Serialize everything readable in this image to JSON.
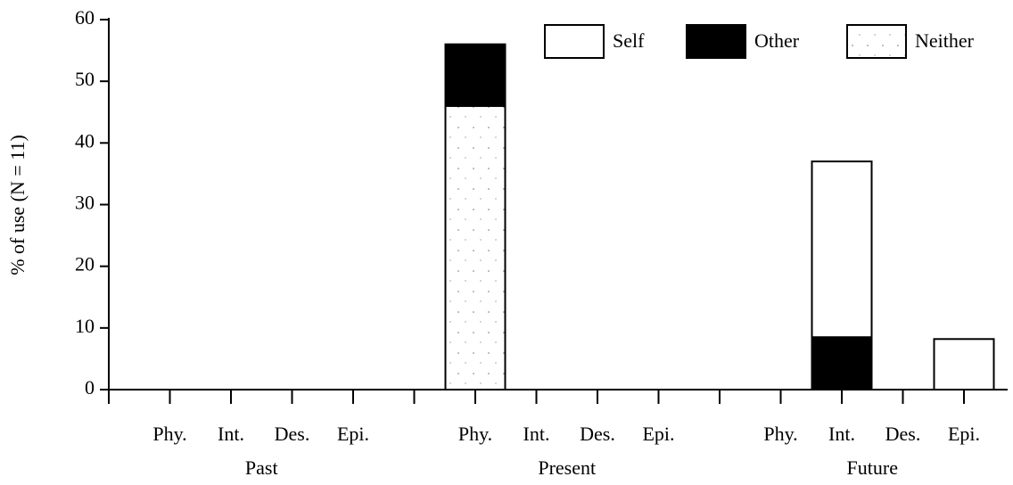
{
  "chart_data": {
    "type": "stacked-bar",
    "ylabel": "% of use (N = 11)",
    "categories": [
      "Phy.",
      "Int.",
      "Des.",
      "Epi.",
      "Phy.",
      "Int.",
      "Des.",
      "Epi.",
      "Phy.",
      "Int.",
      "Des.",
      "Epi."
    ],
    "groups": [
      "Past",
      "Present",
      "Future"
    ],
    "series": [
      {
        "name": "Self",
        "color": "#ffffff",
        "values": [
          0,
          0,
          0,
          0,
          0,
          0,
          0,
          0,
          0,
          28.5,
          0,
          8.2
        ]
      },
      {
        "name": "Other",
        "color": "#000000",
        "values": [
          0,
          0,
          0,
          0,
          10,
          0,
          0,
          0,
          0,
          8.5,
          0,
          0
        ]
      },
      {
        "name": "Neither",
        "color": "dotted",
        "values": [
          0,
          0,
          0,
          0,
          46,
          0,
          0,
          0,
          0,
          0,
          0,
          0
        ]
      }
    ],
    "ylim": [
      0,
      60
    ],
    "yticks": [
      0,
      10,
      20,
      30,
      40,
      50,
      60
    ],
    "legend": "top-right"
  }
}
